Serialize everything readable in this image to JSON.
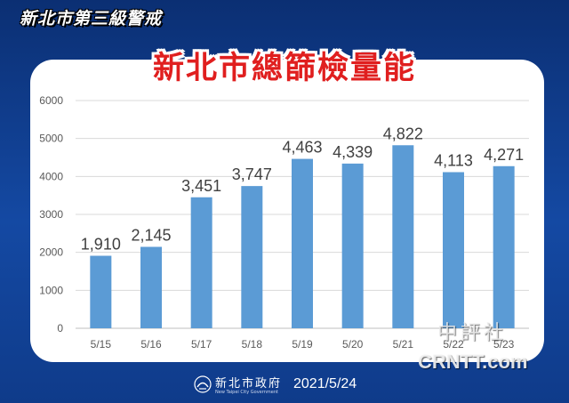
{
  "header": {
    "badge": "新北市第三級警戒",
    "title": "新北市總篩檢量能"
  },
  "chart_data": {
    "type": "bar",
    "title": "新北市總篩檢量能",
    "categories": [
      "5/15",
      "5/16",
      "5/17",
      "5/18",
      "5/19",
      "5/20",
      "5/21",
      "5/22",
      "5/23"
    ],
    "values": [
      1910,
      2145,
      3451,
      3747,
      4463,
      4339,
      4822,
      4113,
      4271
    ],
    "value_labels": [
      "1,910",
      "2,145",
      "3,451",
      "3,747",
      "4,463",
      "4,339",
      "4,822",
      "4,113",
      "4,271"
    ],
    "yticks": [
      "0",
      "1000",
      "2000",
      "3000",
      "4000",
      "5000",
      "6000"
    ],
    "ylim": [
      0,
      6000
    ],
    "xlabel": "",
    "ylabel": "",
    "grid": true,
    "bar_color": "#5b9bd5",
    "gridline_color": "#d9d9d9"
  },
  "footer": {
    "org_name": "新北市政府",
    "org_name_en": "New Taipei City Government",
    "date": "2021/5/24"
  },
  "watermark": {
    "cn": "中評社",
    "en": "CRNTT.com"
  }
}
